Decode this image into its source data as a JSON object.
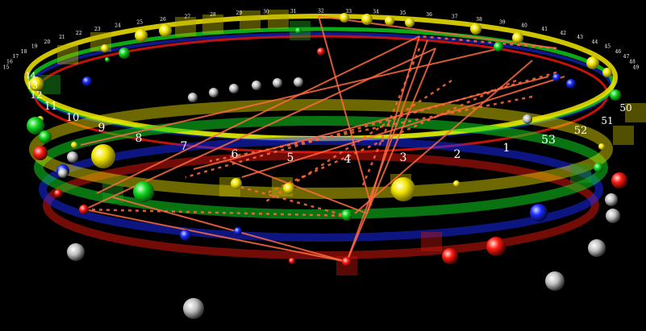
{
  "colors": {
    "background": "#000000",
    "yellow": "#f2e600",
    "green": "#0fd21e",
    "blue": "#1a2cff",
    "red": "#ff1a10",
    "grey": "#bdbdbd",
    "link": "#ff6a40",
    "label": "#ffffff"
  },
  "front_numbers": [
    "1",
    "2",
    "3",
    "4",
    "5",
    "6",
    "7",
    "8",
    "9",
    "10",
    "11",
    "12",
    "13",
    "14",
    "50",
    "51",
    "52",
    "53"
  ],
  "back_numbers": [
    "15",
    "16",
    "17",
    "18",
    "19",
    "20",
    "21",
    "22",
    "23",
    "24",
    "25",
    "26",
    "27",
    "28",
    "29",
    "30",
    "31",
    "32",
    "33",
    "34",
    "35",
    "36",
    "37",
    "38",
    "39",
    "40",
    "41",
    "42",
    "43",
    "44",
    "45",
    "46",
    "47",
    "48",
    "49"
  ]
}
